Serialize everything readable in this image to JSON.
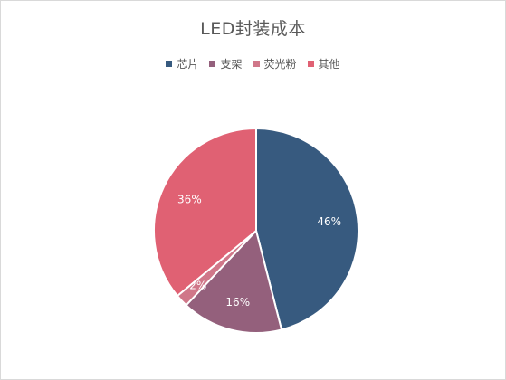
{
  "chart_data": {
    "type": "pie",
    "title": "LED封装成本",
    "categories": [
      "芯片",
      "支架",
      "荧光粉",
      "其他"
    ],
    "values": [
      46,
      16,
      2,
      36
    ],
    "data_labels": [
      "46%",
      "16%",
      "2%",
      "36%"
    ],
    "colors": [
      "#375a7f",
      "#94607c",
      "#d07789",
      "#e06173"
    ],
    "legend_position": "top"
  }
}
